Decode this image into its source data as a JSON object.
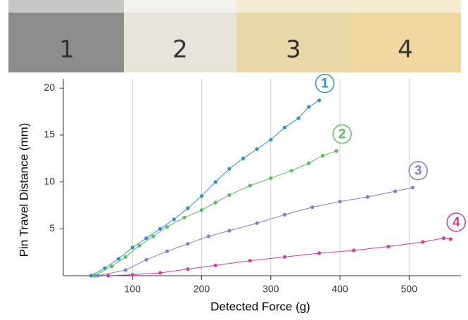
{
  "photo_labels": [
    "1",
    "2",
    "3",
    "4"
  ],
  "chart_data": {
    "type": "line",
    "x_label": "Detected Force (g)",
    "y_label": "Pin Travel Distance (mm)",
    "xlim": [
      0,
      575
    ],
    "ylim": [
      0,
      21
    ],
    "xticks": [
      100,
      200,
      300,
      400,
      500
    ],
    "yticks": [
      5,
      10,
      15,
      20
    ],
    "grid": true,
    "series": [
      {
        "name": "1",
        "color": "#2e8fd0",
        "x": [
          40,
          60,
          80,
          100,
          120,
          140,
          160,
          180,
          200,
          220,
          240,
          260,
          280,
          300,
          320,
          340,
          355,
          370
        ],
        "values": [
          0,
          0.8,
          1.8,
          3,
          4,
          5,
          6,
          7.2,
          8.5,
          10,
          11.4,
          12.5,
          13.5,
          14.5,
          15.8,
          16.8,
          18,
          18.7
        ]
      },
      {
        "name": "2",
        "color": "#5cba5c",
        "x": [
          45,
          70,
          90,
          110,
          130,
          150,
          175,
          200,
          220,
          240,
          270,
          300,
          330,
          355,
          375,
          395
        ],
        "values": [
          0,
          1,
          2,
          3.2,
          4.2,
          5.2,
          6.2,
          7,
          7.8,
          8.6,
          9.6,
          10.4,
          11.2,
          12,
          12.8,
          13.3
        ]
      },
      {
        "name": "3",
        "color": "#7f7fcc",
        "x": [
          50,
          90,
          120,
          150,
          180,
          210,
          240,
          280,
          320,
          360,
          400,
          440,
          480,
          505
        ],
        "values": [
          0,
          0.6,
          1.7,
          2.6,
          3.4,
          4.2,
          4.8,
          5.6,
          6.5,
          7.3,
          7.9,
          8.4,
          9,
          9.4
        ]
      },
      {
        "name": "4",
        "color": "#cc3f9e",
        "x": [
          65,
          100,
          140,
          180,
          220,
          270,
          320,
          370,
          420,
          470,
          520,
          550,
          560
        ],
        "values": [
          0,
          0.1,
          0.3,
          0.7,
          1.1,
          1.6,
          2,
          2.4,
          2.7,
          3.1,
          3.6,
          4,
          3.9
        ]
      }
    ]
  }
}
